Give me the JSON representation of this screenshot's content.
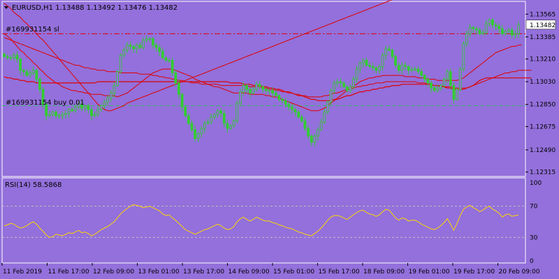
{
  "window": {
    "symbol_title": "EURUSD,H1  1.13488 1.13492 1.13476 1.13482",
    "menu_icon": "triangle-down-icon"
  },
  "price_pane": {
    "current_price": "1.13482",
    "sl_label": "#169931154 sl",
    "buy_label": "#169931154 buy 0.01",
    "price_ticks": [
      "1.13565",
      "1.13385",
      "1.13210",
      "1.13030",
      "1.12850",
      "1.12675",
      "1.12490",
      "1.12315"
    ]
  },
  "rsi_pane": {
    "title": "RSI(14) 58.5868",
    "ticks": [
      "100",
      "70",
      "30",
      "0"
    ]
  },
  "time_axis": {
    "ticks": [
      "11 Feb 2019",
      "11 Feb 17:00",
      "12 Feb 09:00",
      "13 Feb 01:00",
      "13 Feb 17:00",
      "14 Feb 09:00",
      "15 Feb 01:00",
      "15 Feb 17:00",
      "18 Feb 09:00",
      "19 Feb 01:00",
      "19 Feb 17:00",
      "20 Feb 09:00"
    ]
  },
  "colors": {
    "background": "#9370DB",
    "candle": "#32CD32",
    "moving_average": "#E00000",
    "sl_line": "#E00000",
    "order_line": "#3CB371",
    "rsi_line": "#FFD700",
    "current_price_box": "#FFFFFF"
  },
  "chart_data": [
    {
      "type": "candlestick",
      "symbol": "EURUSD",
      "timeframe": "H1",
      "ylim": [
        1.12285,
        1.13655
      ],
      "stop_loss_level": 1.1341,
      "order_level": 1.1284,
      "current": 1.13482,
      "close_series": [
        1.1323,
        1.1322,
        1.1322,
        1.1324,
        1.1321,
        1.1312,
        1.1311,
        1.1308,
        1.131,
        1.1312,
        1.1305,
        1.1297,
        1.1285,
        1.1276,
        1.1277,
        1.1279,
        1.1276,
        1.1276,
        1.1277,
        1.1278,
        1.1281,
        1.128,
        1.1283,
        1.1285,
        1.1282,
        1.1284,
        1.1281,
        1.1276,
        1.1277,
        1.1281,
        1.1284,
        1.1287,
        1.129,
        1.1294,
        1.13,
        1.1311,
        1.1324,
        1.1328,
        1.1332,
        1.1331,
        1.1329,
        1.1332,
        1.133,
        1.1336,
        1.1337,
        1.1337,
        1.1332,
        1.133,
        1.1327,
        1.1322,
        1.132,
        1.132,
        1.131,
        1.1302,
        1.1293,
        1.1283,
        1.1276,
        1.127,
        1.1265,
        1.1258,
        1.1262,
        1.1266,
        1.127,
        1.1271,
        1.1275,
        1.1277,
        1.128,
        1.1278,
        1.127,
        1.1266,
        1.1268,
        1.1272,
        1.1286,
        1.1295,
        1.13,
        1.1297,
        1.1294,
        1.1297,
        1.1301,
        1.1299,
        1.1297,
        1.1296,
        1.1296,
        1.1294,
        1.1292,
        1.1289,
        1.1288,
        1.1285,
        1.1283,
        1.1281,
        1.1279,
        1.1275,
        1.1272,
        1.1266,
        1.126,
        1.1255,
        1.126,
        1.1265,
        1.1271,
        1.1279,
        1.1287,
        1.1296,
        1.1302,
        1.1303,
        1.1302,
        1.1299,
        1.1296,
        1.1299,
        1.1305,
        1.1313,
        1.1318,
        1.132,
        1.1316,
        1.1315,
        1.1314,
        1.1312,
        1.1315,
        1.1324,
        1.1329,
        1.1328,
        1.1323,
        1.1316,
        1.1312,
        1.1316,
        1.1315,
        1.1312,
        1.1313,
        1.1313,
        1.1311,
        1.1308,
        1.1305,
        1.1302,
        1.1298,
        1.1296,
        1.1298,
        1.13,
        1.1305,
        1.1311,
        1.13,
        1.1289,
        1.1297,
        1.1313,
        1.1333,
        1.1341,
        1.1346,
        1.1345,
        1.1344,
        1.1341,
        1.1342,
        1.1349,
        1.1352,
        1.1348,
        1.1347,
        1.1345,
        1.1341,
        1.1343,
        1.1344,
        1.134,
        1.1341,
        1.1348
      ],
      "ma_fast": [
        1.1341,
        1.1339,
        1.1337,
        1.1334,
        1.1331,
        1.1328,
        1.1326,
        1.1323,
        1.1321,
        1.1318,
        1.1316,
        1.1313,
        1.1311,
        1.1308,
        1.1306,
        1.1304,
        1.1302,
        1.1301,
        1.1299,
        1.1298,
        1.1297,
        1.1296,
        1.1296,
        1.1295,
        1.1295,
        1.1294,
        1.1294,
        1.1293,
        1.1293,
        1.1293,
        1.1293,
        1.1292,
        1.1292,
        1.1292,
        1.1292,
        1.1291,
        1.1292,
        1.1293,
        1.1294,
        1.1296,
        1.1298,
        1.13,
        1.1302,
        1.1304,
        1.1306,
        1.1308,
        1.131,
        1.1311,
        1.1312,
        1.1313,
        1.1313,
        1.1313,
        1.1313,
        1.1312,
        1.1311,
        1.131,
        1.1309,
        1.1308,
        1.1307,
        1.1305,
        1.1304,
        1.1303,
        1.1302,
        1.1301,
        1.13,
        1.1299,
        1.1299,
        1.1298,
        1.1297,
        1.1296,
        1.1295,
        1.1294,
        1.1294,
        1.1294,
        1.1294,
        1.1294,
        1.1293,
        1.1293,
        1.1293,
        1.1293,
        1.1293,
        1.1292,
        1.1292,
        1.1291,
        1.1291,
        1.129,
        1.1289,
        1.1288,
        1.1287,
        1.1286,
        1.1285,
        1.1284,
        1.1283,
        1.1282,
        1.1281,
        1.128,
        1.128,
        1.128,
        1.1281,
        1.1282,
        1.1284,
        1.1286,
        1.1288,
        1.129,
        1.1292,
        1.1294,
        1.1296,
        1.1298,
        1.13,
        1.1301,
        1.1303,
        1.1304,
        1.1305,
        1.1306,
        1.1306,
        1.1307,
        1.1307,
        1.1308,
        1.1308,
        1.1308,
        1.1308,
        1.1308,
        1.1308,
        1.1308,
        1.1307,
        1.1307,
        1.1307,
        1.1307,
        1.1306,
        1.1306,
        1.1306,
        1.1305,
        1.1305,
        1.1305,
        1.1304,
        1.1304,
        1.1304,
        1.1304,
        1.1304,
        1.1304,
        1.1304,
        1.1305,
        1.1306,
        1.1308,
        1.131,
        1.1312,
        1.1314,
        1.1316,
        1.1318,
        1.132,
        1.1322,
        1.1324,
        1.1326,
        1.1327,
        1.1328,
        1.1329,
        1.133,
        1.1331,
        1.1331,
        1.1332,
        1.1332
      ],
      "ma_flat": [
        1.1307,
        1.1306,
        1.1306,
        1.1305,
        1.1305,
        1.1304,
        1.1304,
        1.1303,
        1.1303,
        1.1303,
        1.1302,
        1.1302,
        1.1302,
        1.1302,
        1.1302,
        1.1302,
        1.1302,
        1.1302,
        1.1302,
        1.1302,
        1.1302,
        1.1302,
        1.1302,
        1.1302,
        1.1302,
        1.1302,
        1.1302,
        1.1302,
        1.1302,
        1.1303,
        1.1303,
        1.1303,
        1.1303,
        1.1303,
        1.1303,
        1.1303,
        1.1303,
        1.1303,
        1.1303,
        1.1303,
        1.1303,
        1.1303,
        1.1303,
        1.1303,
        1.1303,
        1.1303,
        1.1303,
        1.1303,
        1.1303,
        1.1303,
        1.1303,
        1.1303,
        1.1303,
        1.1303,
        1.1303,
        1.1303,
        1.1303,
        1.1303,
        1.1303,
        1.1303,
        1.1303,
        1.1303,
        1.1303,
        1.1303,
        1.1303,
        1.1303,
        1.1303,
        1.1303,
        1.1303,
        1.1303,
        1.1302,
        1.1302,
        1.1302,
        1.1302,
        1.1301,
        1.1301,
        1.1301,
        1.13,
        1.13,
        1.13,
        1.1299,
        1.1299,
        1.1298,
        1.1298,
        1.1297,
        1.1297,
        1.1296,
        1.1295,
        1.1295,
        1.1294,
        1.1293,
        1.1292,
        1.1292,
        1.1291,
        1.129,
        1.1289,
        1.1289,
        1.1288,
        1.1288,
        1.1288,
        1.1288,
        1.1288,
        1.1289,
        1.1289,
        1.129,
        1.1291,
        1.1292,
        1.1292,
        1.1293,
        1.1294,
        1.1295,
        1.1295,
        1.1296,
        1.1296,
        1.1297,
        1.1297,
        1.1298,
        1.1298,
        1.1299,
        1.1299,
        1.13,
        1.13,
        1.13,
        1.1301,
        1.1301,
        1.1301,
        1.1301,
        1.1301,
        1.1301,
        1.1301,
        1.1301,
        1.1301,
        1.1301,
        1.13,
        1.13,
        1.1299,
        1.1299,
        1.1298,
        1.1298,
        1.1297,
        1.1297,
        1.1297,
        1.1297,
        1.1298,
        1.1299,
        1.13,
        1.1302,
        1.1304,
        1.1305,
        1.1306,
        1.1306,
        1.1306,
        1.1306,
        1.1306,
        1.1306,
        1.1306,
        1.1306,
        1.1306,
        1.1306,
        1.1306,
        1.1306,
        1.1306,
        1.1306,
        1.1306
      ],
      "ma_slow": [
        1.1338,
        1.1337,
        1.1336,
        1.1335,
        1.1334,
        1.1333,
        1.1332,
        1.1331,
        1.133,
        1.1329,
        1.1328,
        1.1327,
        1.1326,
        1.1325,
        1.1324,
        1.1323,
        1.1322,
        1.1321,
        1.132,
        1.1319,
        1.1318,
        1.1317,
        1.1316,
        1.1316,
        1.1315,
        1.1314,
        1.1314,
        1.1313,
        1.1313,
        1.1312,
        1.1312,
        1.1312,
        1.1311,
        1.1311,
        1.1311,
        1.1311,
        1.131,
        1.131,
        1.131,
        1.131,
        1.131,
        1.131,
        1.1309,
        1.1309,
        1.1309,
        1.1309,
        1.1308,
        1.1308,
        1.1307,
        1.1307,
        1.1306,
        1.1306,
        1.1305,
        1.1305,
        1.1304,
        1.1304,
        1.1303,
        1.1303,
        1.1302,
        1.1302,
        1.1302,
        1.1301,
        1.1301,
        1.1301,
        1.1301,
        1.1301,
        1.1301,
        1.13,
        1.13,
        1.13,
        1.13,
        1.13,
        1.13,
        1.13,
        1.13,
        1.13,
        1.1299,
        1.1299,
        1.1299,
        1.1299,
        1.1298,
        1.1298,
        1.1297,
        1.1297,
        1.1296,
        1.1296,
        1.1295,
        1.1295,
        1.1294,
        1.1294,
        1.1293,
        1.1293,
        1.1292,
        1.1292,
        1.1291,
        1.1291,
        1.1291,
        1.1291,
        1.1291,
        1.1292,
        1.1292,
        1.1293,
        1.1294,
        1.1294,
        1.1295,
        1.1296,
        1.1297,
        1.1297,
        1.1298,
        1.1299,
        1.1299,
        1.13,
        1.13,
        1.1301,
        1.1301,
        1.1302,
        1.1302,
        1.1302,
        1.1303,
        1.1303,
        1.1303,
        1.1303,
        1.1303,
        1.1303,
        1.1303,
        1.1303,
        1.1303,
        1.1303,
        1.1302,
        1.1302,
        1.1302,
        1.1301,
        1.1301,
        1.13,
        1.13,
        1.13,
        1.1299,
        1.1299,
        1.1299,
        1.1298,
        1.1298,
        1.1298,
        1.1298,
        1.1298,
        1.1299,
        1.13,
        1.1301,
        1.1302,
        1.1303,
        1.1304,
        1.1305,
        1.1306,
        1.1307,
        1.1308,
        1.1309,
        1.131,
        1.131,
        1.1311,
        1.1311,
        1.1312,
        1.1312,
        1.1312,
        1.1312,
        1.1312
      ],
      "ma_trend": [
        1.1365,
        1.1363,
        1.1361,
        1.1358,
        1.1356,
        1.1354,
        1.1351,
        1.1349,
        1.1346,
        1.1344,
        1.1341,
        1.1338,
        1.1336,
        1.1333,
        1.133,
        1.1327,
        1.1324,
        1.1321,
        1.1318,
        1.1315,
        1.1312,
        1.1309,
        1.1306,
        1.1303,
        1.13,
        1.1297,
        1.1294,
        1.1291,
        1.1288,
        1.1285,
        1.1283,
        1.1281,
        1.128,
        1.128,
        1.1281,
        1.1282,
        1.1283,
        1.1284,
        1.1286,
        1.1287,
        1.1288,
        1.1289,
        1.129,
        1.1291,
        1.1292,
        1.1293,
        1.1294,
        1.1295,
        1.1296,
        1.1297,
        1.1298,
        1.1299,
        1.13,
        1.1301,
        1.1302,
        1.1303,
        1.1304,
        1.1305,
        1.1306,
        1.1307,
        1.1308,
        1.1309,
        1.131,
        1.1311,
        1.1312,
        1.1313,
        1.1314,
        1.1315,
        1.1316,
        1.1317,
        1.1318,
        1.1319,
        1.132,
        1.1321,
        1.1322,
        1.1323,
        1.1324,
        1.1325,
        1.1326,
        1.1327,
        1.1328,
        1.1329,
        1.133,
        1.1331,
        1.1332,
        1.1333,
        1.1334,
        1.1335,
        1.1336,
        1.1337,
        1.1338,
        1.1339,
        1.134,
        1.1341,
        1.1342,
        1.1343,
        1.1344,
        1.1345,
        1.1346,
        1.1347,
        1.1348,
        1.1349,
        1.135,
        1.1351,
        1.1352,
        1.1353,
        1.1354,
        1.1355,
        1.1356,
        1.1357,
        1.1358,
        1.1359,
        1.136,
        1.1361,
        1.1362,
        1.1363,
        1.1364,
        1.1365,
        1.1366,
        1.1367,
        1.1368,
        1.1369,
        1.137,
        1.1371,
        1.1372,
        1.1373,
        1.1374,
        1.1375,
        1.1376,
        1.1377,
        1.1378,
        1.1379,
        1.138,
        1.1381,
        1.1382,
        1.1383,
        1.1384,
        1.1385,
        1.1386,
        1.1387,
        1.1388,
        1.1389,
        1.139,
        1.1391,
        1.1392,
        1.1393,
        1.1394,
        1.1395,
        1.1396,
        1.1397,
        1.1398,
        1.1399,
        1.14,
        1.1401,
        1.1402,
        1.1403,
        1.1404,
        1.1405,
        1.1406,
        1.1407,
        1.1408,
        1.1409,
        1.141,
        1.1411
      ]
    },
    {
      "type": "line",
      "name": "RSI(14)",
      "ylim": [
        0,
        100
      ],
      "levels": [
        30,
        70
      ],
      "last": 58.5868,
      "values": [
        45,
        46,
        48,
        47,
        44,
        42,
        43,
        45,
        48,
        50,
        47,
        42,
        38,
        33,
        30,
        31,
        34,
        33,
        32,
        34,
        36,
        35,
        37,
        39,
        36,
        37,
        35,
        32,
        34,
        37,
        40,
        42,
        44,
        47,
        50,
        55,
        60,
        64,
        67,
        70,
        72,
        71,
        70,
        68,
        69,
        70,
        68,
        66,
        64,
        60,
        58,
        59,
        55,
        52,
        48,
        44,
        40,
        38,
        36,
        34,
        36,
        38,
        40,
        41,
        43,
        45,
        47,
        45,
        42,
        40,
        41,
        44,
        50,
        54,
        56,
        53,
        51,
        53,
        56,
        54,
        52,
        51,
        51,
        49,
        48,
        46,
        45,
        43,
        42,
        41,
        39,
        37,
        36,
        34,
        33,
        32,
        35,
        38,
        42,
        47,
        52,
        56,
        58,
        58,
        57,
        55,
        53,
        56,
        59,
        62,
        64,
        65,
        62,
        60,
        59,
        57,
        59,
        63,
        66,
        65,
        60,
        55,
        52,
        55,
        54,
        51,
        52,
        52,
        50,
        47,
        45,
        43,
        41,
        40,
        42,
        45,
        49,
        54,
        47,
        39,
        48,
        58,
        66,
        69,
        71,
        68,
        66,
        63,
        65,
        68,
        70,
        66,
        64,
        61,
        56,
        59,
        60,
        57,
        58,
        58.5868
      ]
    }
  ]
}
